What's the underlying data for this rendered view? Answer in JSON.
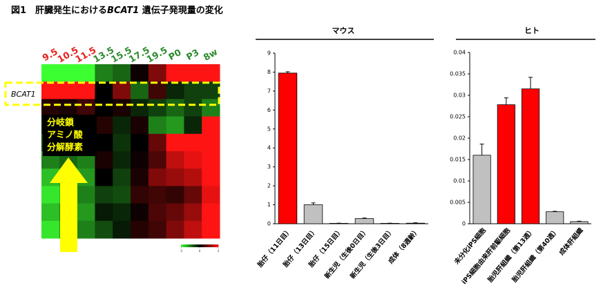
{
  "title": [
    "図1　肝臓発生における",
    "BCAT1",
    " 遺伝子発現量の変化"
  ],
  "chart_data": [
    {
      "type": "heatmap",
      "columns": [
        "9.5",
        "10.5",
        "11.5",
        "13.5",
        "15.5",
        "17.5",
        "19.5",
        "P0",
        "P3",
        "8w"
      ],
      "column_colors": [
        "#e8201c",
        "#e8201c",
        "#e8201c",
        "#2e8b2e",
        "#2e8b2e",
        "#2e8b2e",
        "#2e8b2e",
        "#2e8b2e",
        "#2e8b2e",
        "#2e8b2e"
      ],
      "rows": [
        null,
        "BCAT1",
        null,
        null,
        null,
        null,
        null,
        null,
        null,
        null
      ],
      "values": [
        [
          -2,
          -2,
          -2,
          -1,
          -0.8,
          0.1,
          1,
          2,
          2,
          2
        ],
        [
          2,
          2,
          2,
          0,
          1,
          -0.8,
          0.5,
          -0.3,
          -0.5,
          -0.5
        ],
        [
          0.3,
          0.2,
          0.5,
          0,
          0.2,
          -0.3,
          -0.5,
          -0.8,
          -0.5,
          -1
        ],
        [
          -0.2,
          0,
          0,
          0.3,
          -0.3,
          0.2,
          -1,
          -1.2,
          -0.3,
          2
        ],
        [
          -0.5,
          -0.3,
          -0.3,
          0,
          -0.4,
          0,
          0.8,
          2,
          2,
          2
        ],
        [
          -1,
          -0.8,
          -1,
          0.2,
          -0.3,
          0.1,
          0.6,
          1.5,
          1.8,
          2
        ],
        [
          -1.5,
          -1.2,
          -1.2,
          0,
          -0.5,
          0.2,
          1,
          1.2,
          1.4,
          2
        ],
        [
          -1.8,
          -1.5,
          -1,
          -0.5,
          -0.6,
          0.4,
          0.5,
          0.4,
          0.8,
          1.8
        ],
        [
          -1.5,
          -1,
          -1.2,
          -0.2,
          -0.3,
          0.1,
          0.6,
          0.8,
          1.2,
          2
        ],
        [
          -1.8,
          -1.2,
          -1,
          -0.6,
          -0.2,
          0.3,
          0.5,
          1,
          1.5,
          2
        ]
      ],
      "annotation": [
        "分岐鎖",
        "アミノ酸",
        "分解酵素"
      ],
      "clim": [
        -2,
        2
      ],
      "cticks": [
        -2,
        0,
        2
      ]
    },
    {
      "type": "bar",
      "title": "マウス",
      "categories": [
        "胎仔（11日目）",
        "胎仔（13日目）",
        "胎仔（15日目）",
        "新生児（生後0日目）",
        "新生児（生後3日目）",
        "成体（8週齢）"
      ],
      "values": [
        7.95,
        1.0,
        0.02,
        0.27,
        0.02,
        0.03
      ],
      "errors": [
        0.07,
        0.1,
        0.01,
        0.03,
        0.01,
        0.02
      ],
      "colors": [
        "#ff0000",
        "#c0c0c0",
        "#c0c0c0",
        "#c0c0c0",
        "#c0c0c0",
        "#c0c0c0"
      ],
      "ylim": [
        0,
        9
      ],
      "yticks": [
        0,
        1,
        2,
        3,
        4,
        5,
        6,
        7,
        8,
        9
      ]
    },
    {
      "type": "bar",
      "title": "ヒト",
      "categories": [
        "未分化iPS細胞",
        "iPS細胞由来肝前駆細胞",
        "胎児肝組織（第13週）",
        "胎児肝組織（第40週）",
        "成体肝組織"
      ],
      "values": [
        0.016,
        0.0278,
        0.0315,
        0.0028,
        0.0005
      ],
      "errors": [
        0.0026,
        0.0016,
        0.0027,
        0.0001,
        0.0001
      ],
      "colors": [
        "#c0c0c0",
        "#ff0000",
        "#ff0000",
        "#c0c0c0",
        "#c0c0c0"
      ],
      "ylim": [
        0,
        0.04
      ],
      "yticks": [
        0,
        0.005,
        0.01,
        0.015,
        0.02,
        0.025,
        0.03,
        0.035,
        0.04
      ]
    }
  ]
}
